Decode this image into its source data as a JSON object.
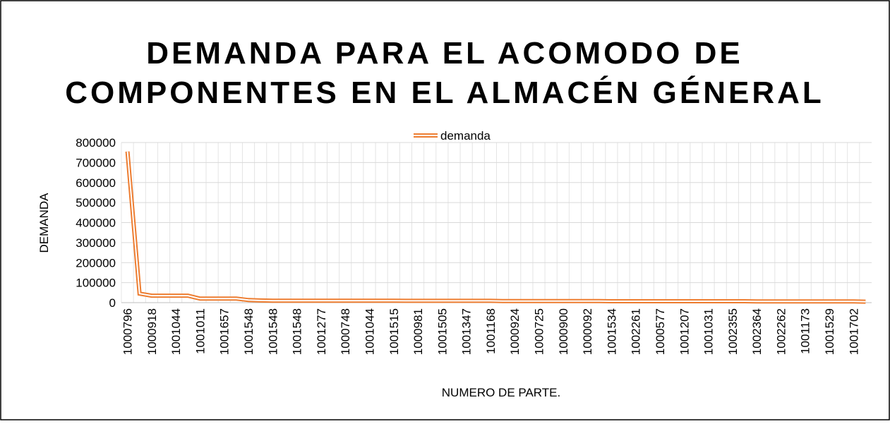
{
  "chart_data": {
    "type": "line",
    "title": "DEMANDA PARA EL ACOMODO DE COMPONENTES EN EL ALMACÉN GÉNERAL",
    "x_label": "NUMERO DE PARTE.",
    "y_label": "DEMANDA",
    "categories": [
      "1000796",
      null,
      "1000918",
      null,
      "1001044",
      null,
      "1001011",
      null,
      "1001657",
      null,
      "1001548",
      null,
      "1001548",
      null,
      "1001548",
      null,
      "1001277",
      null,
      "1000748",
      null,
      "1001044",
      null,
      "1001515",
      null,
      "1000981",
      null,
      "1001505",
      null,
      "1001347",
      null,
      "1001168",
      null,
      "1000924",
      null,
      "1000725",
      null,
      "1000900",
      null,
      "1000092",
      null,
      "1001534",
      null,
      "1002261",
      null,
      "1000577",
      null,
      "1001207",
      null,
      "1001031",
      null,
      "1002355",
      null,
      "1002364",
      null,
      "1002262",
      null,
      "1001173",
      null,
      "1001529",
      null,
      "1001702",
      null
    ],
    "series": [
      {
        "name": "demanda",
        "color": "#ed7d31",
        "values": [
          755000,
          45000,
          35000,
          35000,
          35000,
          35000,
          20000,
          20000,
          20000,
          20000,
          13000,
          11000,
          10000,
          10000,
          10000,
          10000,
          10000,
          10000,
          10000,
          10000,
          10000,
          10000,
          10000,
          9000,
          9000,
          9000,
          9000,
          9000,
          9000,
          9000,
          9000,
          8000,
          8000,
          8000,
          8000,
          8000,
          8000,
          8000,
          8000,
          8000,
          7000,
          7000,
          7000,
          7000,
          7000,
          7000,
          7000,
          7000,
          7000,
          7000,
          7000,
          7000,
          6000,
          6000,
          6000,
          6000,
          6000,
          6000,
          6000,
          6000,
          6000,
          5000
        ]
      }
    ],
    "ylim": [
      0,
      800000
    ],
    "yticks": [
      0,
      100000,
      200000,
      300000,
      400000,
      500000,
      600000,
      700000,
      800000
    ],
    "grid": true,
    "legend": "top"
  }
}
